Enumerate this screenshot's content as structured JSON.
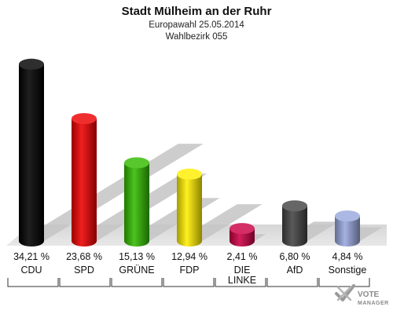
{
  "title": "Stadt Mülheim an der Ruhr",
  "subtitle_1": "Europawahl 25.05.2014",
  "subtitle_2": "Wahlbezirk 055",
  "chart_data": {
    "type": "bar",
    "title": "Stadt Mülheim an der Ruhr",
    "subtitle": [
      "Europawahl 25.05.2014",
      "Wahlbezirk 055"
    ],
    "categories": [
      [
        "CDU"
      ],
      [
        "SPD"
      ],
      [
        "GRÜNE"
      ],
      [
        "FDP"
      ],
      [
        "DIE",
        "LINKE"
      ],
      [
        "AfD"
      ],
      [
        "Sonstige"
      ]
    ],
    "values": [
      34.21,
      23.68,
      15.13,
      12.94,
      2.41,
      6.8,
      4.84
    ],
    "value_labels": [
      "34,21 %",
      "23,68 %",
      "15,13 %",
      "12,94 %",
      "2,41 %",
      "6,80 %",
      "4,84 %"
    ],
    "colors": [
      "#000000",
      "#ee0000",
      "#33bb00",
      "#ffee00",
      "#cc0044",
      "#444444",
      "#99a8dd"
    ],
    "ylim": [
      0,
      36
    ],
    "grid": false,
    "legend": "none"
  },
  "logo": {
    "line1": "VOTE",
    "line2": "MANAGER",
    "icon": "vote-manager-logo-icon"
  }
}
